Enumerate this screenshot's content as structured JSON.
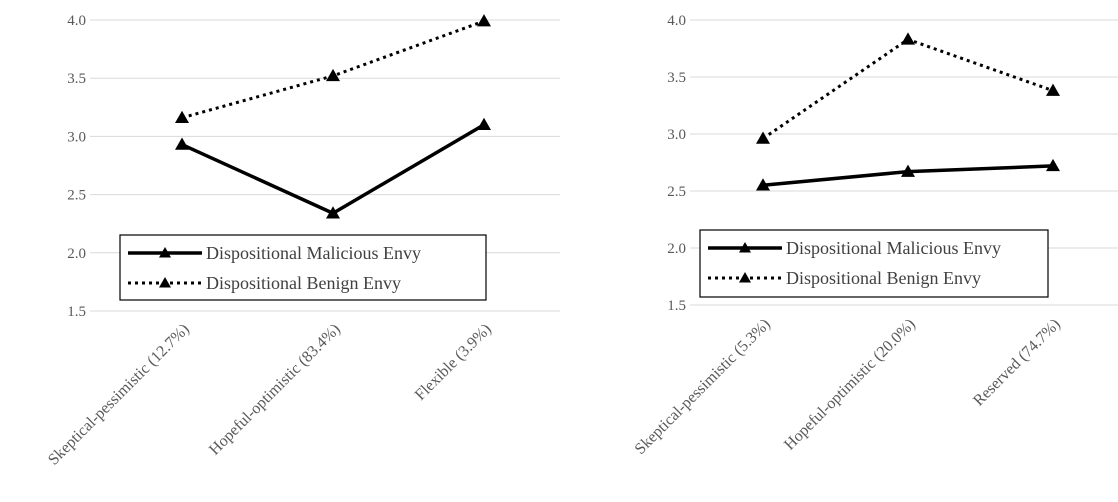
{
  "chart_data": [
    {
      "type": "line",
      "categories": [
        "Skeptical-pessimistic (12.7%)",
        "Hopeful-optimistic (83.4%)",
        "Flexible (3.9%)"
      ],
      "series": [
        {
          "name": "Dispositional Malicious Envy",
          "values": [
            2.93,
            2.34,
            3.1
          ],
          "style": "solid",
          "marker": "triangle"
        },
        {
          "name": "Dispositional Benign Envy",
          "values": [
            3.16,
            3.52,
            3.99
          ],
          "style": "dotted",
          "marker": "triangle"
        }
      ],
      "yticks": [
        "1.5",
        "2.0",
        "2.5",
        "3.0",
        "3.5",
        "4.0"
      ],
      "ylim": [
        1.5,
        4.0
      ],
      "grid": true,
      "legend": "bottom-left"
    },
    {
      "type": "line",
      "categories": [
        "Skeptical-pessimistic (5.3%)",
        "Hopeful-optimistic (20.0%)",
        "Reserved (74.7%)"
      ],
      "series": [
        {
          "name": "Dispositional Malicious Envy",
          "values": [
            2.55,
            2.67,
            2.72
          ],
          "style": "solid",
          "marker": "triangle"
        },
        {
          "name": "Dispositional Benign Envy",
          "values": [
            2.96,
            3.83,
            3.38
          ],
          "style": "dotted",
          "marker": "triangle"
        }
      ],
      "yticks": [
        "1.5",
        "2.0",
        "2.5",
        "3.0",
        "3.5",
        "4.0"
      ],
      "ylim": [
        1.5,
        4.0
      ],
      "grid": true,
      "legend": "bottom-left"
    }
  ]
}
